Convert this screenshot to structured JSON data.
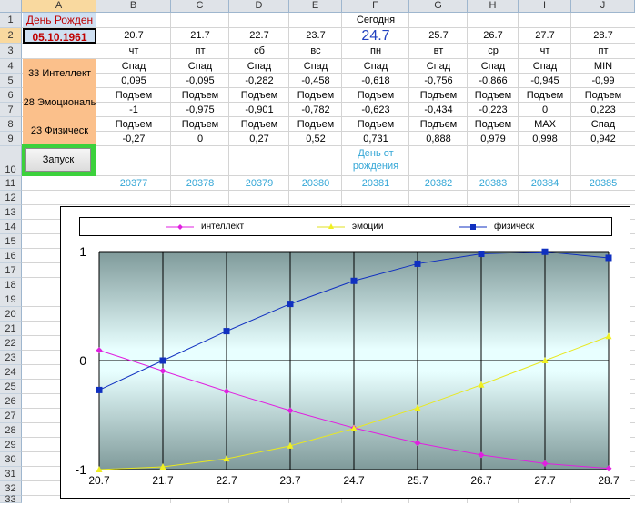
{
  "columns": [
    "A",
    "B",
    "C",
    "D",
    "E",
    "F",
    "G",
    "H",
    "I",
    "J"
  ],
  "rows": [
    "1",
    "2",
    "3",
    "4",
    "5",
    "6",
    "7",
    "8",
    "9",
    "10",
    "11",
    "12",
    "13",
    "14",
    "15",
    "16",
    "17",
    "18",
    "19",
    "20",
    "21",
    "22",
    "23",
    "24",
    "25",
    "26",
    "27",
    "28",
    "29",
    "30",
    "31",
    "32",
    "33"
  ],
  "cells": {
    "a1": "День Рожден",
    "a2": "05.10.1961",
    "a45": "33 Интеллект",
    "a67": "28 Эмоциональ",
    "a89": "23 Физическ",
    "button": "Запуск",
    "today": "Сегодня",
    "dob_label": "День от рождения",
    "r2": [
      "20.7",
      "21.7",
      "22.7",
      "23.7",
      "24.7",
      "25.7",
      "26.7",
      "27.7",
      "28.7"
    ],
    "r3": [
      "чт",
      "пт",
      "сб",
      "вс",
      "пн",
      "вт",
      "ср",
      "чт",
      "пт"
    ],
    "r4": [
      "Спад",
      "Спад",
      "Спад",
      "Спад",
      "Спад",
      "Спад",
      "Спад",
      "Спад",
      "MIN"
    ],
    "r5": [
      "0,095",
      "-0,095",
      "-0,282",
      "-0,458",
      "-0,618",
      "-0,756",
      "-0,866",
      "-0,945",
      "-0,99"
    ],
    "r6": [
      "Подъем",
      "Подъем",
      "Подъем",
      "Подъем",
      "Подъем",
      "Подъем",
      "Подъем",
      "Подъем",
      "Подъем"
    ],
    "r7": [
      "-1",
      "-0,975",
      "-0,901",
      "-0,782",
      "-0,623",
      "-0,434",
      "-0,223",
      "0",
      "0,223"
    ],
    "r8": [
      "Подъем",
      "Подъем",
      "Подъем",
      "Подъем",
      "Подъем",
      "Подъем",
      "Подъем",
      "MAX",
      "Спад"
    ],
    "r9": [
      "-0,27",
      "0",
      "0,27",
      "0,52",
      "0,731",
      "0,888",
      "0,979",
      "0,998",
      "0,942"
    ],
    "r11": [
      "20377",
      "20378",
      "20379",
      "20380",
      "20381",
      "20382",
      "20383",
      "20384",
      "20385"
    ]
  },
  "colors": {
    "intellect": "#e020e0",
    "emotion": "#f0f020",
    "physical": "#1030c0",
    "header_bg": "#dfe3e8",
    "selected_header": "#f9d99f"
  },
  "chart_data": {
    "type": "line",
    "categories": [
      "20.7",
      "21.7",
      "22.7",
      "23.7",
      "24.7",
      "25.7",
      "26.7",
      "27.7",
      "28.7"
    ],
    "series": [
      {
        "name": "интеллект",
        "values": [
          0.095,
          -0.095,
          -0.282,
          -0.458,
          -0.618,
          -0.756,
          -0.866,
          -0.945,
          -0.99
        ]
      },
      {
        "name": "эмоции",
        "values": [
          -1,
          -0.975,
          -0.901,
          -0.782,
          -0.623,
          -0.434,
          -0.223,
          0,
          0.223
        ]
      },
      {
        "name": "физическ",
        "values": [
          -0.27,
          0,
          0.27,
          0.52,
          0.731,
          0.888,
          0.979,
          0.998,
          0.942
        ]
      }
    ],
    "yticks": [
      "1",
      "0",
      "-1"
    ],
    "ylim": [
      -1,
      1
    ],
    "legend": "top",
    "grid": true
  }
}
